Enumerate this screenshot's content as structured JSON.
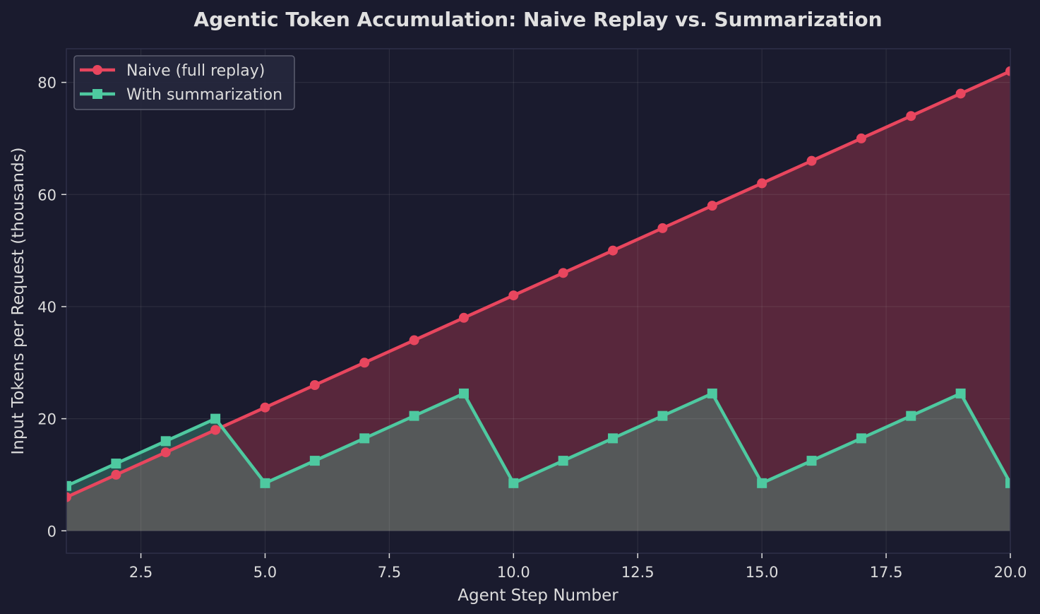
{
  "chart_data": {
    "type": "line",
    "title": "Agentic Token Accumulation: Naive Replay vs. Summarization",
    "xlabel": "Agent Step Number",
    "ylabel": "Input Tokens per Request (thousands)",
    "xlim": [
      1,
      20
    ],
    "ylim": [
      -4,
      86
    ],
    "x_ticks": [
      2.5,
      5.0,
      7.5,
      10.0,
      12.5,
      15.0,
      17.5,
      20.0
    ],
    "x_tick_labels": [
      "2.5",
      "5.0",
      "7.5",
      "10.0",
      "12.5",
      "15.0",
      "17.5",
      "20.0"
    ],
    "y_ticks": [
      0,
      20,
      40,
      60,
      80
    ],
    "y_tick_labels": [
      "0",
      "20",
      "40",
      "60",
      "80"
    ],
    "grid": true,
    "legend_position": "top-left",
    "x": [
      1,
      2,
      3,
      4,
      5,
      6,
      7,
      8,
      9,
      10,
      11,
      12,
      13,
      14,
      15,
      16,
      17,
      18,
      19,
      20
    ],
    "series": [
      {
        "name": "Naive (full replay)",
        "color": "#e8465e",
        "marker": "circle",
        "fill": true,
        "values": [
          6,
          10,
          14,
          18,
          22,
          26,
          30,
          34,
          38,
          42,
          46,
          50,
          54,
          58,
          62,
          66,
          70,
          74,
          78,
          82
        ]
      },
      {
        "name": "With summarization",
        "color": "#4ec9a0",
        "marker": "square",
        "fill": true,
        "values": [
          8,
          12,
          16,
          20,
          8.5,
          12.5,
          16.5,
          20.5,
          24.5,
          8.5,
          12.5,
          16.5,
          20.5,
          24.5,
          8.5,
          12.5,
          16.5,
          20.5,
          24.5,
          8.5
        ]
      }
    ]
  }
}
